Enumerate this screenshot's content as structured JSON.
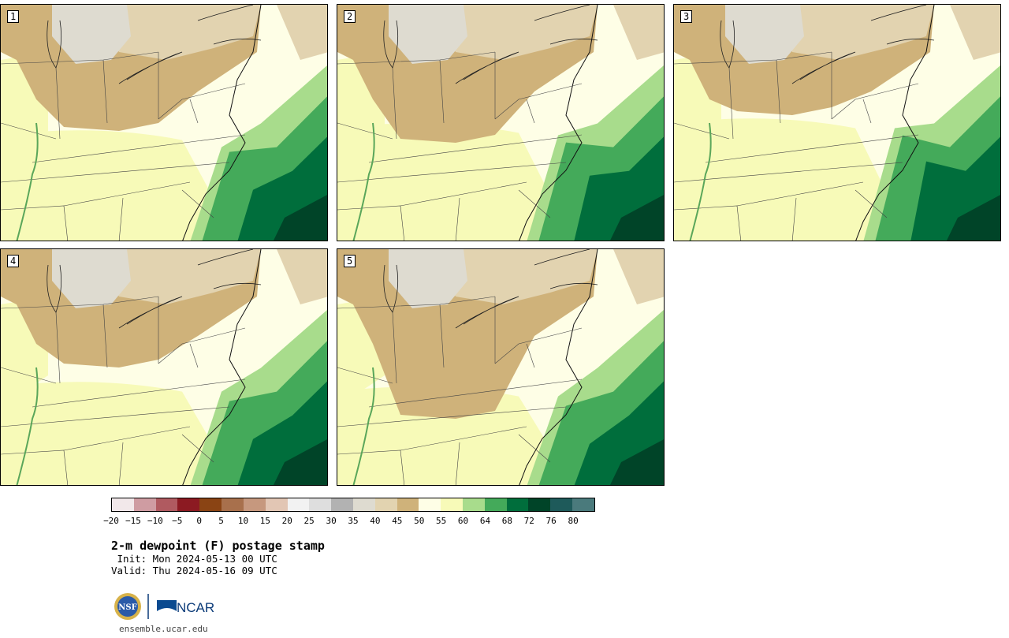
{
  "panels": [
    "1",
    "2",
    "3",
    "4",
    "5"
  ],
  "colorbar": {
    "colors": [
      "#f2e8ea",
      "#cf9ca2",
      "#b05a60",
      "#8c1a22",
      "#8a4414",
      "#a8704c",
      "#c6987e",
      "#e2c6b4",
      "#f2f2f2",
      "#dedede",
      "#b2b2b2",
      "#dedbd0",
      "#e2d3b0",
      "#cfb27a",
      "#fefee6",
      "#f7fab8",
      "#a8dc8c",
      "#44aa5a",
      "#006e3c",
      "#004428",
      "#1e5a5a",
      "#4a7a7c"
    ],
    "ticks": [
      "−20",
      "−15",
      "−10",
      "−5",
      "0",
      "5",
      "10",
      "15",
      "20",
      "25",
      "30",
      "35",
      "40",
      "45",
      "50",
      "55",
      "60",
      "64",
      "68",
      "72",
      "76",
      "80"
    ]
  },
  "title": "2-m dewpoint (F) postage stamp",
  "init": " Init: Mon 2024-05-13 00 UTC",
  "valid": "Valid: Thu 2024-05-16 09 UTC",
  "logo": {
    "nsf": "NSF",
    "ncar": "NCAR"
  },
  "url": "ensemble.ucar.edu"
}
